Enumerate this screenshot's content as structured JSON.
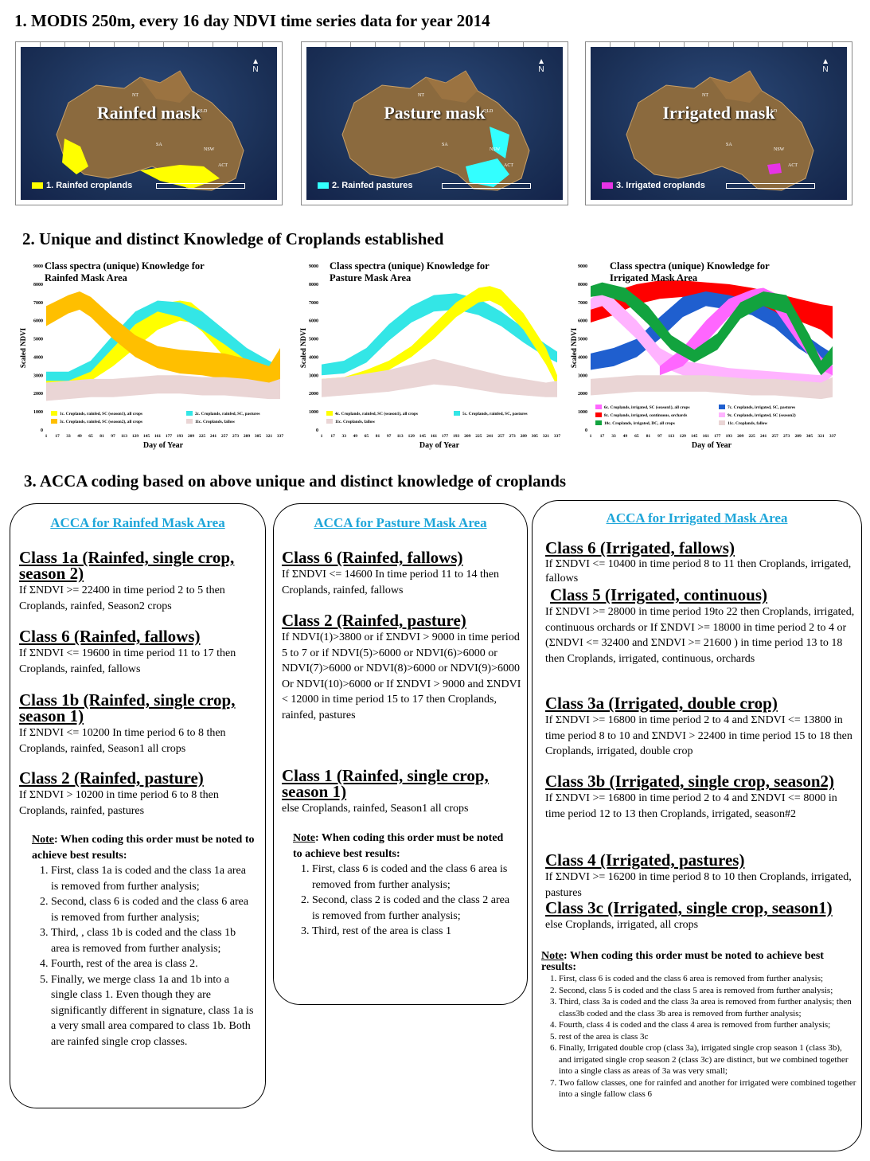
{
  "headings": {
    "h1": "1. MODIS 250m, every 16 day NDVI time series  data for year 2014",
    "h2": "2. Unique and distinct Knowledge of Croplands established",
    "h3": "3. ACCA coding based on above unique and distinct knowledge of croplands"
  },
  "maps": [
    {
      "title": "Rainfed mask",
      "legend": "1. Rainfed croplands",
      "color": "#ffff00"
    },
    {
      "title": "Pasture mask",
      "legend": "2. Rainfed pastures",
      "color": "#33ffff"
    },
    {
      "title": "Irrigated mask",
      "legend": "3. Irrigated croplands",
      "color": "#e633e6"
    }
  ],
  "map_labels": {
    "north": "N",
    "states": [
      "NT",
      "QLD",
      "SA",
      "NSW",
      "ACT"
    ]
  },
  "chart_data": [
    {
      "type": "area",
      "title": "Class spectra (unique) Knowledge for Rainfed Mask Area",
      "xlabel": "Day of Year",
      "ylabel": "Scaled NDVI",
      "xlim": [
        1,
        337
      ],
      "ylim": [
        0,
        9000
      ],
      "x_ticks": [
        "1",
        "17",
        "33",
        "49",
        "65",
        "81",
        "97",
        "113",
        "129",
        "145",
        "161",
        "177",
        "193",
        "209",
        "225",
        "241",
        "257",
        "273",
        "289",
        "305",
        "321",
        "337"
      ],
      "y_ticks": [
        "0",
        "1000",
        "2000",
        "3000",
        "4000",
        "5000",
        "6000",
        "7000",
        "8000",
        "9000"
      ],
      "series": [
        {
          "name": "1c. Croplands, rainfed, SC (season1), all crops",
          "color": "#ffff00",
          "x": [
            1,
            33,
            65,
            97,
            129,
            161,
            193,
            209,
            225,
            257,
            289,
            321,
            337
          ],
          "upper": [
            2800,
            2900,
            3300,
            4500,
            5800,
            6900,
            7100,
            7000,
            6500,
            5000,
            3800,
            2800,
            3200
          ],
          "lower": [
            2300,
            2400,
            2700,
            3500,
            4500,
            5500,
            6000,
            5900,
            5400,
            4000,
            3000,
            2400,
            2500
          ]
        },
        {
          "name": "2c. Croplands, rainfed, SC, pastures",
          "color": "#33e6e6",
          "x": [
            1,
            33,
            65,
            97,
            129,
            161,
            193,
            225,
            257,
            289,
            321,
            337
          ],
          "upper": [
            3200,
            3200,
            3800,
            5200,
            6500,
            7100,
            7000,
            6500,
            5500,
            4500,
            3800,
            3500
          ],
          "lower": [
            2700,
            2700,
            3200,
            4500,
            5800,
            6500,
            6200,
            5500,
            4700,
            3800,
            3200,
            3000
          ]
        },
        {
          "name": "3c. Croplands, rainfed, SC (season2), all crops",
          "color": "#ffbf00",
          "x": [
            1,
            33,
            49,
            65,
            97,
            129,
            161,
            193,
            225,
            257,
            289,
            321,
            337
          ],
          "upper": [
            6800,
            7400,
            7600,
            7300,
            6200,
            5200,
            4600,
            4400,
            4300,
            4200,
            3900,
            3500,
            4500
          ],
          "lower": [
            5700,
            6400,
            6600,
            6200,
            5000,
            4000,
            3400,
            3100,
            3000,
            2800,
            2500,
            2000,
            2300
          ]
        },
        {
          "name": "11c. Croplands, fallow",
          "color": "#ead5d5",
          "x": [
            1,
            33,
            65,
            97,
            129,
            161,
            193,
            225,
            257,
            289,
            321,
            337
          ],
          "upper": [
            2600,
            2700,
            2800,
            2800,
            2900,
            3000,
            3000,
            2900,
            2900,
            2800,
            2600,
            2800
          ],
          "lower": [
            1600,
            1700,
            1800,
            1800,
            1900,
            2000,
            2000,
            1900,
            1900,
            1800,
            1700,
            1700
          ]
        }
      ]
    },
    {
      "type": "area",
      "title": "Class spectra (unique) Knowledge for Pasture Mask Area",
      "xlabel": "Day of Year",
      "ylabel": "Scaled NDVI",
      "xlim": [
        1,
        337
      ],
      "ylim": [
        0,
        9000
      ],
      "x_ticks": [
        "1",
        "17",
        "33",
        "49",
        "65",
        "81",
        "97",
        "113",
        "129",
        "145",
        "161",
        "177",
        "193",
        "209",
        "225",
        "241",
        "257",
        "273",
        "289",
        "305",
        "321",
        "337"
      ],
      "y_ticks": [
        "0",
        "1000",
        "2000",
        "3000",
        "4000",
        "5000",
        "6000",
        "7000",
        "8000",
        "9000"
      ],
      "series": [
        {
          "name": "5c. Croplands, rainfed, SC, pastures",
          "color": "#33e6e6",
          "x": [
            1,
            33,
            65,
            97,
            129,
            161,
            193,
            225,
            257,
            289,
            321,
            337
          ],
          "upper": [
            3600,
            3800,
            4500,
            5800,
            6800,
            7400,
            7500,
            7200,
            6500,
            5600,
            4700,
            4300
          ],
          "lower": [
            3000,
            3100,
            3700,
            4900,
            5900,
            6500,
            6600,
            6300,
            5700,
            4800,
            4000,
            3700
          ]
        },
        {
          "name": "4c. Croplands, rainfed, SC (season1), all crops",
          "color": "#ffff00",
          "x": [
            1,
            33,
            65,
            97,
            129,
            161,
            193,
            225,
            241,
            257,
            289,
            321,
            337
          ],
          "upper": [
            2800,
            2900,
            3300,
            3800,
            4600,
            5800,
            7000,
            7800,
            7900,
            7700,
            6400,
            4500,
            3000
          ],
          "lower": [
            2500,
            2600,
            2900,
            3300,
            4000,
            5000,
            6200,
            7000,
            7100,
            6800,
            5500,
            3600,
            2400
          ]
        },
        {
          "name": "11c. Croplands, fallow",
          "color": "#ead5d5",
          "x": [
            1,
            33,
            65,
            97,
            129,
            161,
            193,
            225,
            257,
            289,
            321,
            337
          ],
          "upper": [
            2800,
            2900,
            3100,
            3300,
            3600,
            3900,
            3600,
            3300,
            3000,
            2800,
            2600,
            2700
          ],
          "lower": [
            1800,
            1900,
            2000,
            2100,
            2300,
            2500,
            2400,
            2200,
            2000,
            1900,
            1800,
            1800
          ]
        }
      ]
    },
    {
      "type": "area",
      "title": "Class spectra (unique) Knowledge for Irrigated Mask Area",
      "xlabel": "Day of Year",
      "ylabel": "Scaled NDVI",
      "xlim": [
        1,
        337
      ],
      "ylim": [
        0,
        9000
      ],
      "x_ticks": [
        "1",
        "17",
        "33",
        "49",
        "65",
        "81",
        "97",
        "113",
        "129",
        "145",
        "161",
        "177",
        "193",
        "209",
        "225",
        "241",
        "257",
        "273",
        "289",
        "305",
        "321",
        "337"
      ],
      "y_ticks": [
        "0",
        "1000",
        "2000",
        "3000",
        "4000",
        "5000",
        "6000",
        "7000",
        "8000",
        "9000"
      ],
      "series": [
        {
          "name": "8c. Croplands, irrigated, continuous, orchards",
          "color": "#ff0000",
          "x": [
            1,
            33,
            65,
            97,
            129,
            161,
            193,
            225,
            257,
            289,
            321,
            337
          ],
          "upper": [
            7000,
            7600,
            8000,
            8200,
            8200,
            8100,
            8000,
            7800,
            7500,
            7200,
            6900,
            6800
          ],
          "lower": [
            5900,
            6300,
            6900,
            7200,
            7300,
            7300,
            7100,
            6800,
            6400,
            6000,
            5500,
            5000
          ]
        },
        {
          "name": "7c. Croplands, irrigated, SC, pastures",
          "color": "#1f5fcf",
          "x": [
            1,
            33,
            65,
            97,
            129,
            161,
            193,
            225,
            257,
            289,
            321,
            337
          ],
          "upper": [
            4200,
            4500,
            5000,
            6200,
            7300,
            7600,
            7400,
            7100,
            6500,
            5500,
            4600,
            4200
          ],
          "lower": [
            3300,
            3500,
            4000,
            5000,
            6200,
            6800,
            6600,
            6300,
            5600,
            4500,
            3700,
            3400
          ]
        },
        {
          "name": "9c. Croplands, irrigated, SC (season2)",
          "color": "#ffb3ff",
          "x": [
            1,
            17,
            33,
            65,
            97,
            129,
            161,
            193,
            225,
            257,
            289,
            321,
            337
          ],
          "upper": [
            7200,
            7600,
            7200,
            6000,
            4500,
            3800,
            3600,
            3400,
            3300,
            3200,
            3100,
            3000,
            3800
          ],
          "lower": [
            6600,
            6800,
            6200,
            5000,
            3500,
            3000,
            2900,
            2800,
            2700,
            2600,
            2500,
            2400,
            3000
          ]
        },
        {
          "name": "6c. Croplands, irrigated, SC (season1), all crops",
          "color": "#ff66ff",
          "x": [
            97,
            129,
            161,
            193,
            225,
            241,
            257,
            289,
            321,
            337
          ],
          "upper": [
            3500,
            4500,
            6000,
            7200,
            7700,
            7800,
            7500,
            5800,
            4000,
            3500
          ],
          "lower": [
            3000,
            3500,
            4800,
            6200,
            6900,
            7000,
            6600,
            4800,
            3300,
            3000
          ]
        },
        {
          "name": "10c. Croplands, irrigated, DC, all crops",
          "color": "#12a33e",
          "x": [
            1,
            17,
            49,
            81,
            113,
            145,
            177,
            209,
            241,
            273,
            305,
            321,
            337
          ],
          "upper": [
            7900,
            8100,
            7800,
            6800,
            5200,
            4400,
            5300,
            7000,
            7600,
            7400,
            5200,
            3800,
            4600
          ],
          "lower": [
            7300,
            7400,
            7000,
            5800,
            4400,
            3700,
            4400,
            6100,
            6800,
            6400,
            4000,
            3000,
            3600
          ]
        },
        {
          "name": "11c. Croplands, fallow",
          "color": "#ead5d5",
          "x": [
            1,
            33,
            65,
            97,
            129,
            161,
            193,
            225,
            257,
            289,
            321,
            337
          ],
          "upper": [
            2800,
            2900,
            3000,
            3000,
            3000,
            3000,
            2900,
            2800,
            2800,
            2700,
            2600,
            2900
          ],
          "lower": [
            1900,
            2000,
            2100,
            2100,
            2100,
            2100,
            2000,
            1900,
            1900,
            1800,
            1700,
            1800
          ]
        }
      ]
    }
  ],
  "acca": {
    "rainfed": {
      "title": "ACCA for Rainfed Mask Area",
      "classes": [
        {
          "head": "Class 1a (Rainfed, single crop, season 2)",
          "text": "If ΣNDVI >= 22400 in time period 2 to 5 then Croplands, rainfed, Season2 crops"
        },
        {
          "head": "Class 6 (Rainfed, fallows)",
          "text": "If ΣNDVI <= 19600 in time period 11 to 17 then Croplands, rainfed,  fallows"
        },
        {
          "head": "Class 1b (Rainfed, single crop, season 1)",
          "text": "If ΣNDVI <= 10200 In time period 6 to 8 then Croplands, rainfed, Season1  all crops"
        },
        {
          "head": "Class 2 (Rainfed, pasture)",
          "text": "If ΣNDVI > 10200 in time period 6 to 8 then Croplands, rainfed, pastures"
        }
      ],
      "note_label": "Note",
      "note_head": ": When coding this order must be noted to achieve best results:",
      "note_items": [
        "First, class 1a is coded and the class 1a area is removed from further analysis;",
        "Second, class 6 is coded and the class 6 area is removed from further analysis;",
        "Third, , class 1b is coded and the class 1b area is removed from further analysis;",
        "Fourth, rest of the area is class 2.",
        "Finally, we merge class 1a and 1b into a single class 1. Even though they are significantly different in signature, class 1a is a very small area compared to class 1b. Both are rainfed single crop classes."
      ]
    },
    "pasture": {
      "title": "ACCA for Pasture Mask Area",
      "classes": [
        {
          "head": "Class 6 (Rainfed, fallows)",
          "text": "If ΣNDVI <= 14600 In time period 11 to 14 then Croplands, rainfed,  fallows"
        },
        {
          "head": "Class 2 (Rainfed, pasture)",
          "text": "If NDVI(1)>3800 or if ΣNDVI > 9000 in time period 5 to 7 or if NDVI(5)>6000 or NDVI(6)>6000 or NDVI(7)>6000 or NDVI(8)>6000 or NDVI(9)>6000 Or NDVI(10)>6000 or If ΣNDVI > 9000  and ΣNDVI < 12000 in time period 15 to 17  then Croplands, rainfed, pastures"
        },
        {
          "head": "Class 1 (Rainfed, single crop, season 1)",
          "text": "else  Croplands, rainfed, Season1 all crops"
        }
      ],
      "note_label": "Note",
      "note_head": ": When coding this order must be noted to achieve best results:",
      "note_items": [
        "First, class 6 is coded and the class 6 area is removed  from further analysis;",
        "Second, class 2 is coded and the class 2 area is removed from further analysis;",
        "Third, rest of the area is class 1"
      ]
    },
    "irrigated": {
      "title": "ACCA for Irrigated Mask Area",
      "classes": [
        {
          "head": "Class 6 (Irrigated, fallows)",
          "text": "If ΣNDVI <= 10400 in time period 8 to 11 then Croplands, irrigated,  fallows"
        },
        {
          "head": "Class 5 (Irrigated, continuous)",
          "text": "If ΣNDVI >= 28000 in time period 19to 22 then Croplands, irrigated, continuous orchards or If ΣNDVI >= 18000 in time period 2 to 4 or (ΣNDVI <= 32400 and ΣNDVI >= 21600 ) in time period 13 to 18 then Croplands, irrigated, continuous, orchards"
        },
        {
          "head": "Class 3a (Irrigated,  double crop)",
          "text": "If ΣNDVI >= 16800 in time period 2 to 4 and  ΣNDVI <= 13800 in time period 8 to 10 and ΣNDVI > 22400 in time period 15 to 18  then Croplands, irrigated, double crop"
        },
        {
          "head": "Class 3b (Irrigated,  single crop, season2)",
          "text": "If ΣNDVI >= 16800 in time period 2 to 4 and ΣNDVI <= 8000 in time period 12 to 13 then Croplands, irrigated, season#2"
        },
        {
          "head": "Class 4 (Irrigated, pastures)",
          "text": "If ΣNDVI >= 16200 in time period 8 to 10  then Croplands, irrigated, pastures"
        },
        {
          "head": "Class 3c (Irrigated,  single crop, season1)",
          "text": "else  Croplands, irrigated, all crops"
        }
      ],
      "note_label": "Note",
      "note_head": ": When coding this order must be noted to achieve best results:",
      "note_items": [
        "First, class 6 is coded and the class 6 area is removed from further analysis;",
        "Second, class 5 is coded and the class 5 area is removed from further analysis;",
        "Third, class 3a is coded and the class 3a area is removed from further analysis; then class3b coded and the class 3b area is removed from further analysis;",
        "Fourth, class 4 is coded and the class 4 area is removed from further analysis;",
        "rest of the area is class 3c",
        "Finally, Irrigated double crop (class 3a), irrigated single crop season 1 (class 3b), and irrigated single crop season 2 (class 3c) are distinct, but we combined together into a single class as areas of 3a was very small;",
        "Two fallow classes, one for rainfed and another for irrigated were combined together into a single fallow class 6"
      ]
    }
  }
}
